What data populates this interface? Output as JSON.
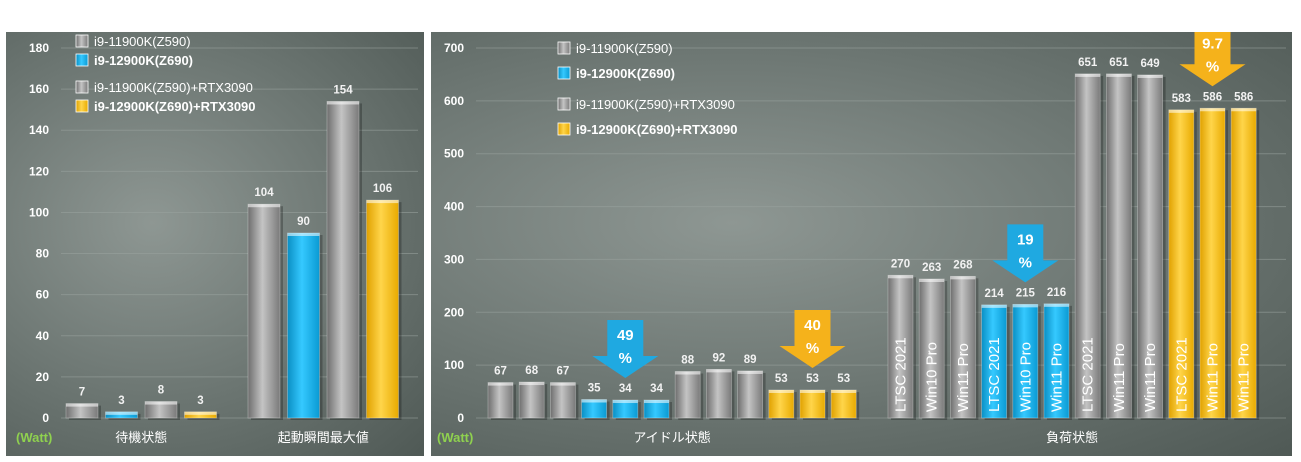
{
  "colors": {
    "gray": "#9b9b9b",
    "blue": "#18b4ec",
    "yellow": "#ffc000",
    "arrow_blue": "#1fa9e1",
    "arrow_yellow": "#f5b21b",
    "unit_green": "#8fd14f"
  },
  "legend": [
    {
      "label": "i9-11900K(Z590)",
      "color": "gray",
      "bold": false
    },
    {
      "label": "i9-12900K(Z690)",
      "color": "blue",
      "bold": true
    },
    {
      "label": "i9-11900K(Z590)+RTX3090",
      "color": "gray",
      "bold": false
    },
    {
      "label": "i9-12900K(Z690)+RTX3090",
      "color": "yellow",
      "bold": true
    }
  ],
  "unit_label": "(Watt)",
  "chart_data": [
    {
      "type": "bar",
      "ylim": [
        0,
        180
      ],
      "yticks": [
        0,
        20,
        40,
        60,
        80,
        100,
        120,
        140,
        160,
        180
      ],
      "grid": true,
      "legend_position": "top-left",
      "groups": [
        {
          "category": "待機状態",
          "bars": [
            {
              "value": 7,
              "color": "gray",
              "text": ""
            },
            {
              "value": 3,
              "color": "blue",
              "text": ""
            },
            {
              "value": 8,
              "color": "gray",
              "text": ""
            },
            {
              "value": 3,
              "color": "yellow",
              "text": ""
            }
          ]
        },
        {
          "category": "起動瞬間最大値",
          "bars": [
            {
              "value": 104,
              "color": "gray",
              "text": ""
            },
            {
              "value": 90,
              "color": "blue",
              "text": ""
            },
            {
              "value": 154,
              "color": "gray",
              "text": ""
            },
            {
              "value": 106,
              "color": "yellow",
              "text": ""
            }
          ]
        }
      ],
      "annotations": []
    },
    {
      "type": "bar",
      "ylim": [
        0,
        700
      ],
      "yticks": [
        0,
        100,
        200,
        300,
        400,
        500,
        600,
        700
      ],
      "grid": true,
      "legend_position": "top-left",
      "groups": [
        {
          "category": "アイドル状態",
          "bars": [
            {
              "value": 67,
              "color": "gray",
              "text": ""
            },
            {
              "value": 68,
              "color": "gray",
              "text": ""
            },
            {
              "value": 67,
              "color": "gray",
              "text": ""
            },
            {
              "value": 35,
              "color": "blue",
              "text": ""
            },
            {
              "value": 34,
              "color": "blue",
              "text": ""
            },
            {
              "value": 34,
              "color": "blue",
              "text": ""
            },
            {
              "value": 88,
              "color": "gray",
              "text": ""
            },
            {
              "value": 92,
              "color": "gray",
              "text": ""
            },
            {
              "value": 89,
              "color": "gray",
              "text": ""
            },
            {
              "value": 53,
              "color": "yellow",
              "text": ""
            },
            {
              "value": 53,
              "color": "yellow",
              "text": ""
            },
            {
              "value": 53,
              "color": "yellow",
              "text": ""
            }
          ]
        },
        {
          "category": "負荷状態",
          "bars": [
            {
              "value": 270,
              "color": "gray",
              "text": "LTSC 2021"
            },
            {
              "value": 263,
              "color": "gray",
              "text": "Win10 Pro"
            },
            {
              "value": 268,
              "color": "gray",
              "text": "Win11 Pro"
            },
            {
              "value": 214,
              "color": "blue",
              "text": "LTSC 2021"
            },
            {
              "value": 215,
              "color": "blue",
              "text": "Win10 Pro"
            },
            {
              "value": 216,
              "color": "blue",
              "text": "Win11 Pro"
            },
            {
              "value": 651,
              "color": "gray",
              "text": "LTSC 2021"
            },
            {
              "value": 651,
              "color": "gray",
              "text": "Win11 Pro"
            },
            {
              "value": 649,
              "color": "gray",
              "text": "Win11 Pro"
            },
            {
              "value": 583,
              "color": "yellow",
              "text": "LTSC 2021"
            },
            {
              "value": 586,
              "color": "yellow",
              "text": "Win11 Pro"
            },
            {
              "value": 586,
              "color": "yellow",
              "text": "Win11 Pro"
            }
          ]
        }
      ],
      "annotations": [
        {
          "line1": "49",
          "line2": "%",
          "color": "arrow_blue",
          "over_group": 0,
          "over_bar": 4
        },
        {
          "line1": "40",
          "line2": "%",
          "color": "arrow_yellow",
          "over_group": 0,
          "over_bar": 10
        },
        {
          "line1": "19",
          "line2": "%",
          "color": "arrow_blue",
          "over_group": 1,
          "over_bar": 4
        },
        {
          "line1": "9.7",
          "line2": "%",
          "color": "arrow_yellow",
          "over_group": 1,
          "over_bar": 10
        }
      ]
    }
  ]
}
